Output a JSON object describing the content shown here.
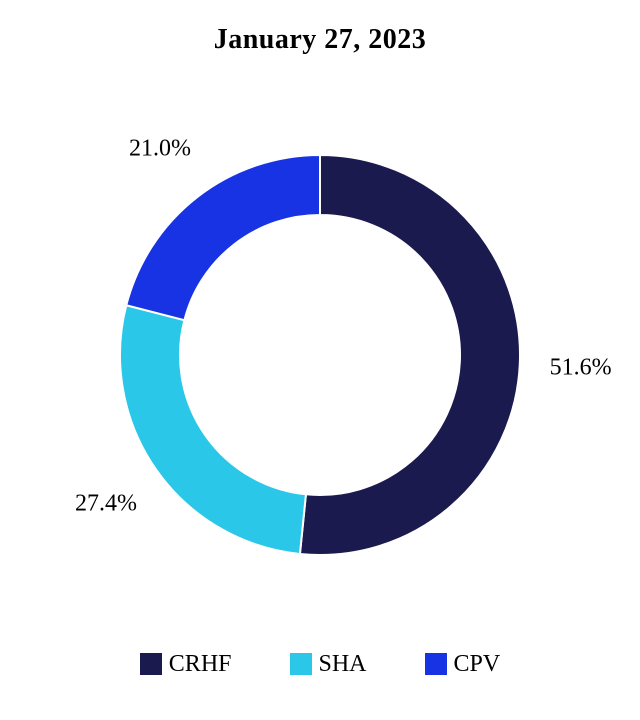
{
  "chart_data": {
    "type": "pie",
    "subtype": "donut",
    "title": "January 27, 2023",
    "categories": [
      "CRHF",
      "SHA",
      "CPV"
    ],
    "series": [
      {
        "name": "CRHF",
        "value": 51.6,
        "label": "51.6%",
        "color": "#1b1a4e"
      },
      {
        "name": "SHA",
        "value": 27.4,
        "label": "27.4%",
        "color": "#2bc7e9"
      },
      {
        "name": "CPV",
        "value": 21.0,
        "label": "21.0%",
        "color": "#1733e3"
      }
    ],
    "start_angle": "top",
    "direction": "clockwise",
    "inner_radius_ratio": 0.7,
    "slice_gap_color": "#ffffff",
    "legend_position": "bottom",
    "background_color": "#ffffff"
  }
}
